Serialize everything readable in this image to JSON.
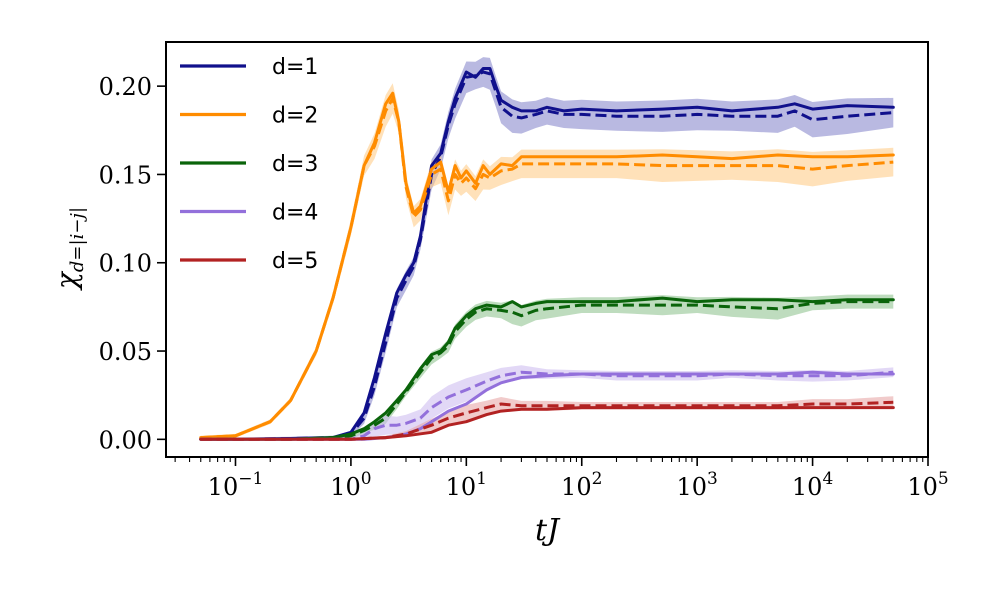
{
  "chart_data": {
    "type": "line",
    "title": "",
    "xlabel": "tJ",
    "ylabel": "χ_{d=|i−j|}",
    "ylabel_main": "χ",
    "ylabel_sub": "d=|i−j|",
    "xscale": "log",
    "xlim": [
      0.025,
      100000
    ],
    "ylim": [
      -0.01,
      0.225
    ],
    "x_ticks": [
      {
        "value": 0.1,
        "base": "10",
        "exp": "−1"
      },
      {
        "value": 1,
        "base": "10",
        "exp": "0"
      },
      {
        "value": 10,
        "base": "10",
        "exp": "1"
      },
      {
        "value": 100,
        "base": "10",
        "exp": "2"
      },
      {
        "value": 1000,
        "base": "10",
        "exp": "3"
      },
      {
        "value": 10000,
        "base": "10",
        "exp": "4"
      },
      {
        "value": 100000,
        "base": "10",
        "exp": "5"
      }
    ],
    "y_ticks": [
      {
        "value": 0.0,
        "label": "0.00"
      },
      {
        "value": 0.05,
        "label": "0.05"
      },
      {
        "value": 0.1,
        "label": "0.10"
      },
      {
        "value": 0.15,
        "label": "0.15"
      },
      {
        "value": 0.2,
        "label": "0.20"
      }
    ],
    "legend_position": "top-left",
    "grid": false,
    "series": [
      {
        "name": "d=1",
        "color": "#10108c",
        "band_color": "#8080c8",
        "x": [
          0.05,
          0.1,
          0.3,
          0.7,
          1.0,
          1.3,
          1.6,
          2.0,
          2.5,
          3.0,
          3.5,
          4.0,
          5.0,
          6.0,
          7.0,
          8.0,
          10,
          12,
          14,
          16,
          18,
          20,
          25,
          30,
          40,
          50,
          70,
          100,
          200,
          500,
          1000,
          2000,
          5000,
          7000,
          10000,
          20000,
          50000
        ],
        "solid": [
          0.0,
          0.0,
          0.0005,
          0.001,
          0.004,
          0.015,
          0.035,
          0.06,
          0.083,
          0.093,
          0.1,
          0.115,
          0.155,
          0.162,
          0.18,
          0.193,
          0.208,
          0.205,
          0.21,
          0.21,
          0.2,
          0.192,
          0.188,
          0.186,
          0.186,
          0.188,
          0.186,
          0.187,
          0.186,
          0.187,
          0.188,
          0.186,
          0.188,
          0.19,
          0.187,
          0.189,
          0.188
        ],
        "dashed": [
          0.0,
          0.0,
          0.0005,
          0.001,
          0.003,
          0.012,
          0.03,
          0.055,
          0.08,
          0.09,
          0.098,
          0.113,
          0.15,
          0.16,
          0.178,
          0.19,
          0.205,
          0.206,
          0.208,
          0.207,
          0.197,
          0.188,
          0.183,
          0.182,
          0.184,
          0.186,
          0.184,
          0.184,
          0.183,
          0.183,
          0.184,
          0.183,
          0.183,
          0.186,
          0.181,
          0.183,
          0.185
        ]
      },
      {
        "name": "d=2",
        "color": "#ff8c00",
        "band_color": "#ffc880",
        "x": [
          0.05,
          0.1,
          0.2,
          0.3,
          0.5,
          0.7,
          1.0,
          1.3,
          1.6,
          2.0,
          2.3,
          2.6,
          3.0,
          3.5,
          4.0,
          5.0,
          6.0,
          7.0,
          8.0,
          9.0,
          10,
          12,
          14,
          16,
          20,
          25,
          30,
          50,
          100,
          200,
          500,
          1000,
          2000,
          5000,
          10000,
          20000,
          50000
        ],
        "solid": [
          0.001,
          0.002,
          0.01,
          0.022,
          0.05,
          0.08,
          0.12,
          0.155,
          0.168,
          0.19,
          0.196,
          0.18,
          0.145,
          0.128,
          0.132,
          0.153,
          0.157,
          0.14,
          0.155,
          0.148,
          0.152,
          0.145,
          0.155,
          0.15,
          0.156,
          0.155,
          0.16,
          0.16,
          0.16,
          0.16,
          0.161,
          0.16,
          0.159,
          0.161,
          0.16,
          0.16,
          0.161
        ],
        "dashed": [
          0.001,
          0.002,
          0.01,
          0.022,
          0.05,
          0.08,
          0.12,
          0.155,
          0.166,
          0.186,
          0.193,
          0.18,
          0.143,
          0.126,
          0.13,
          0.15,
          0.153,
          0.135,
          0.15,
          0.145,
          0.148,
          0.142,
          0.15,
          0.148,
          0.152,
          0.153,
          0.156,
          0.156,
          0.156,
          0.156,
          0.155,
          0.155,
          0.155,
          0.155,
          0.153,
          0.155,
          0.157
        ]
      },
      {
        "name": "d=3",
        "color": "#0a640a",
        "band_color": "#88c088",
        "x": [
          0.05,
          0.1,
          0.3,
          0.7,
          1.0,
          1.3,
          1.6,
          2.0,
          2.5,
          3.0,
          4.0,
          5.0,
          6.0,
          7.0,
          8.0,
          10,
          12,
          15,
          20,
          25,
          30,
          40,
          50,
          100,
          200,
          500,
          1000,
          2000,
          5000,
          10000,
          20000,
          50000
        ],
        "solid": [
          0.0,
          0.0,
          0.0,
          0.001,
          0.003,
          0.006,
          0.01,
          0.015,
          0.022,
          0.028,
          0.04,
          0.048,
          0.05,
          0.055,
          0.063,
          0.07,
          0.074,
          0.076,
          0.075,
          0.078,
          0.075,
          0.077,
          0.078,
          0.078,
          0.078,
          0.08,
          0.078,
          0.079,
          0.079,
          0.078,
          0.079,
          0.079
        ],
        "dashed": [
          0.0,
          0.0,
          0.0,
          0.001,
          0.002,
          0.005,
          0.008,
          0.012,
          0.02,
          0.027,
          0.038,
          0.046,
          0.049,
          0.053,
          0.061,
          0.068,
          0.072,
          0.074,
          0.073,
          0.072,
          0.07,
          0.073,
          0.074,
          0.076,
          0.076,
          0.076,
          0.076,
          0.075,
          0.074,
          0.077,
          0.078,
          0.078
        ]
      },
      {
        "name": "d=4",
        "color": "#9370db",
        "band_color": "#cbb8ee",
        "x": [
          0.05,
          0.1,
          0.3,
          0.7,
          1.0,
          1.3,
          1.6,
          2.0,
          2.5,
          3.0,
          4.0,
          5.0,
          7.0,
          10,
          15,
          20,
          30,
          50,
          100,
          200,
          500,
          1000,
          2000,
          5000,
          10000,
          20000,
          50000
        ],
        "solid": [
          0.0,
          0.0,
          0.0,
          0.0,
          0.0,
          0.0,
          0.0005,
          0.001,
          0.002,
          0.003,
          0.006,
          0.01,
          0.016,
          0.02,
          0.028,
          0.032,
          0.035,
          0.036,
          0.037,
          0.037,
          0.037,
          0.037,
          0.037,
          0.037,
          0.038,
          0.037,
          0.037
        ],
        "dashed": [
          0.0,
          0.0,
          0.0,
          0.0,
          0.0,
          0.002,
          0.006,
          0.008,
          0.008,
          0.009,
          0.012,
          0.018,
          0.024,
          0.028,
          0.033,
          0.036,
          0.038,
          0.037,
          0.037,
          0.036,
          0.036,
          0.036,
          0.037,
          0.036,
          0.036,
          0.036,
          0.038
        ]
      },
      {
        "name": "d=5",
        "color": "#b22222",
        "band_color": "#e6a0a0",
        "x": [
          0.05,
          0.1,
          0.3,
          0.7,
          1.0,
          2.0,
          3.0,
          5.0,
          7.0,
          10,
          15,
          20,
          30,
          50,
          100,
          200,
          500,
          1000,
          2000,
          5000,
          10000,
          20000,
          50000
        ],
        "solid": [
          0.0,
          0.0,
          0.0,
          0.0,
          0.0,
          0.001,
          0.002,
          0.004,
          0.008,
          0.01,
          0.014,
          0.016,
          0.017,
          0.017,
          0.018,
          0.018,
          0.018,
          0.018,
          0.018,
          0.018,
          0.018,
          0.018,
          0.018
        ],
        "dashed": [
          0.0,
          0.0,
          0.0,
          0.0,
          0.0,
          0.001,
          0.003,
          0.008,
          0.012,
          0.015,
          0.018,
          0.02,
          0.019,
          0.019,
          0.019,
          0.019,
          0.019,
          0.019,
          0.019,
          0.019,
          0.02,
          0.02,
          0.021
        ]
      }
    ]
  }
}
